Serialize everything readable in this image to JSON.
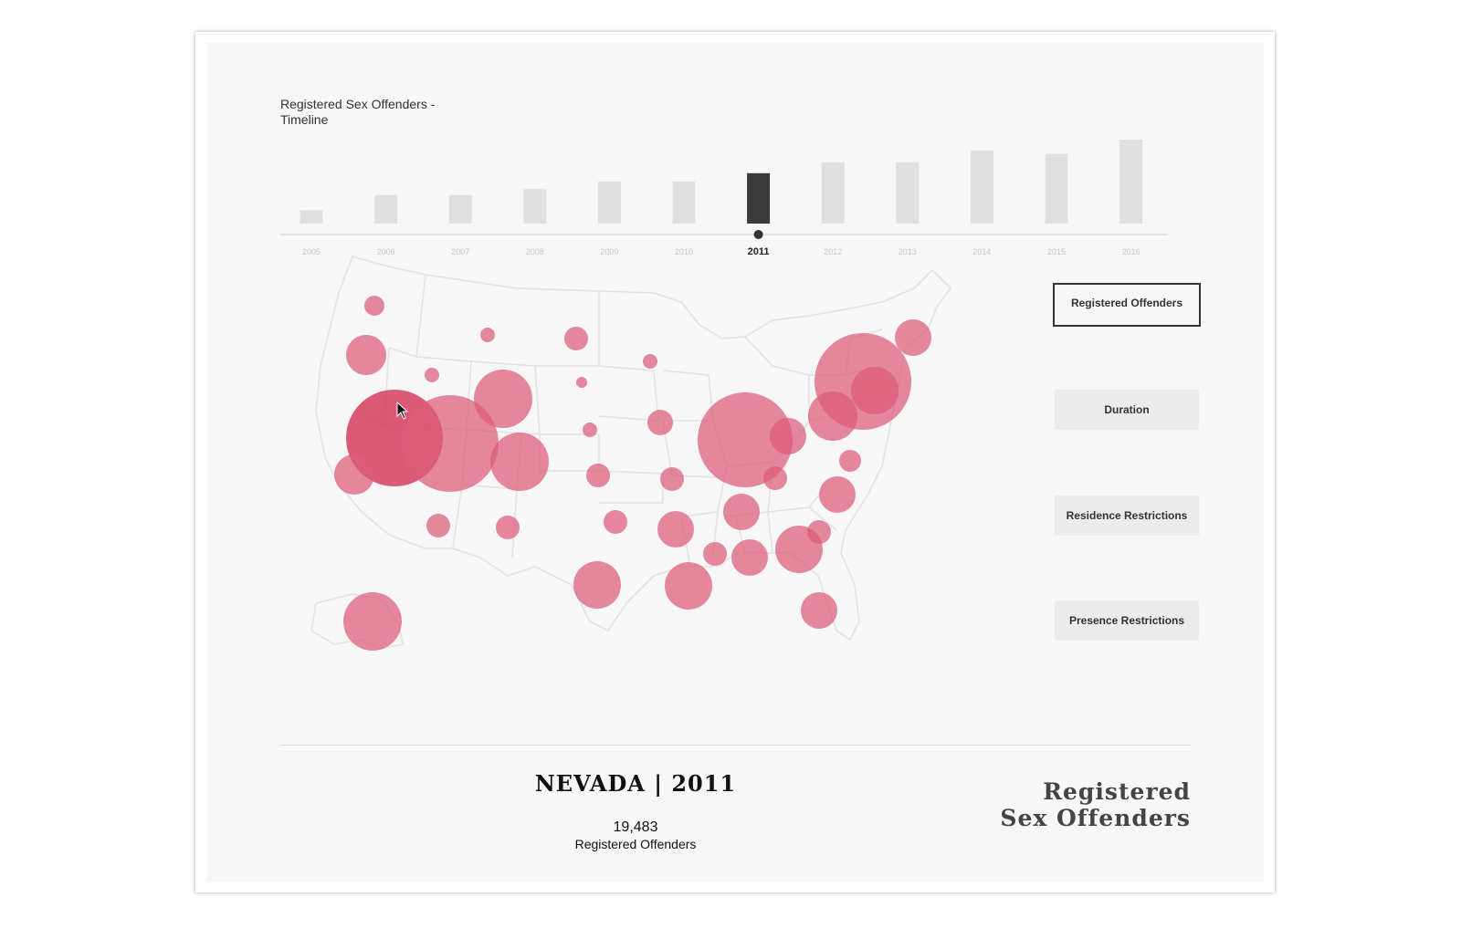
{
  "timeline": {
    "title_line1": "Registered Sex Offenders -",
    "title_line2": "Timeline",
    "selected_year": "2011",
    "years": [
      "2005",
      "2006",
      "2007",
      "2008",
      "2009",
      "2010",
      "2011",
      "2012",
      "2013",
      "2014",
      "2015",
      "2016"
    ],
    "relative_values": [
      0.16,
      0.34,
      0.34,
      0.41,
      0.5,
      0.5,
      0.6,
      0.73,
      0.73,
      0.87,
      0.83,
      1.0
    ]
  },
  "metrics": {
    "buttons": [
      "Registered Offenders",
      "Duration",
      "Residence Restrictions",
      "Presence Restrictions"
    ],
    "active": "Registered Offenders"
  },
  "detail": {
    "state_year": "NEVADA | 2011",
    "count": "19,483",
    "count_label": "Registered Offenders"
  },
  "brand": {
    "line1": "Registered",
    "line2": "Sex Offenders"
  },
  "colors": {
    "bubble": "#dd5c79",
    "bubble_selected": "#d53d60",
    "bar": "#e0e0e0",
    "bar_selected": "#3a3a3a",
    "map_lines": "#e3e3e3"
  }
}
